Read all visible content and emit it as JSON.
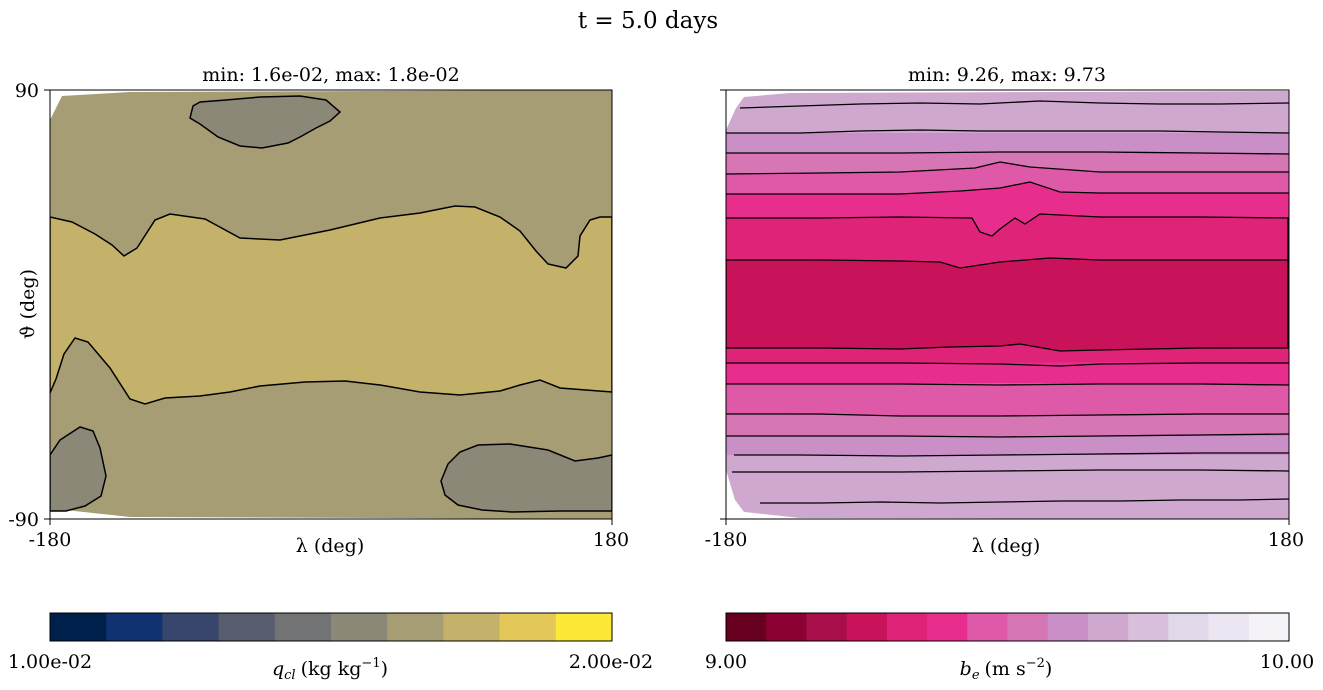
{
  "figure": {
    "suptitle": "t = 5.0 days"
  },
  "panels": [
    {
      "title": "min: 1.6e-02, max: 1.8e-02",
      "xlabel": "λ (deg)",
      "ylabel": "ϑ (deg)",
      "xticks": [
        "-180",
        "180"
      ],
      "yticks": [
        "90",
        "-90"
      ],
      "colorbar": {
        "label_main": "q",
        "label_sub": "cl",
        "label_unit": "(kg kg",
        "label_sup": "−1",
        "label_close": ")",
        "min_label": "1.00e-02",
        "max_label": "2.00e-02",
        "colormap": "cividis",
        "colors": [
          "#00204c",
          "#113270",
          "#38466e",
          "#575d6d",
          "#727374",
          "#8b8878",
          "#a69d75",
          "#c4b26a",
          "#e3c859",
          "#fde838"
        ]
      }
    },
    {
      "title": "min: 9.26, max: 9.73",
      "xlabel": "λ (deg)",
      "xticks": [
        "-180",
        "180"
      ],
      "colorbar": {
        "label_main": "b",
        "label_sub": "e",
        "label_unit": "(m s",
        "label_sup": "−2",
        "label_close": ")",
        "min_label": "9.00",
        "max_label": "10.00",
        "colormap": "PuRd_r",
        "colors": [
          "#67001f",
          "#8b0134",
          "#a80e4a",
          "#c8125a",
          "#df2378",
          "#e72e8d",
          "#de5aa8",
          "#d776b5",
          "#c98fc6",
          "#cfa8d0",
          "#d8bfdb",
          "#e1d9ea",
          "#ece6f2",
          "#f5f3f8"
        ]
      }
    }
  ],
  "chart_data": [
    {
      "type": "contour",
      "variable": "q_cl",
      "title": "min: 1.6e-02, max: 1.8e-02",
      "xlabel": "λ (deg)",
      "ylabel": "ϑ (deg)",
      "xlim": [
        -180,
        180
      ],
      "ylim": [
        -90,
        90
      ],
      "colorbar_range": [
        0.01,
        0.02
      ],
      "n_levels": 10,
      "field_min": 0.016,
      "field_max": 0.018,
      "contour_lines": [
        {
          "name": "northern-boundary",
          "lon": [
            -180,
            -165,
            -150,
            -130,
            -120,
            -112,
            -100,
            -85,
            -60,
            -30,
            0,
            30,
            60,
            90,
            105,
            115,
            122,
            128,
            130,
            135,
            145,
            155,
            165,
            172,
            176,
            180
          ],
          "lat": [
            30,
            27,
            22,
            15,
            11,
            9,
            13,
            23,
            30,
            31,
            28,
            24,
            23,
            24,
            28,
            32,
            36,
            38,
            39,
            36,
            27,
            19,
            15,
            11,
            17,
            17
          ]
        },
        {
          "name": "southern-boundary",
          "lon": [
            -180,
            -175,
            -168,
            -158,
            -145,
            -135,
            -125,
            -115,
            -105,
            -90,
            -70,
            -40,
            -10,
            20,
            50,
            80,
            100,
            115,
            130,
            140,
            150,
            160,
            170,
            180
          ],
          "lat": [
            -43,
            -30,
            -20,
            -21,
            -31,
            -38,
            -44,
            -46,
            -45,
            -42,
            -39,
            -39,
            -41,
            -39,
            -34,
            -33,
            -34,
            -38,
            -38,
            -36,
            -35,
            -35,
            -36,
            -36
          ]
        },
        {
          "name": "north-cell",
          "lon": [
            -98,
            -100,
            -93,
            -80,
            -65,
            -50,
            -33,
            -25,
            -15,
            -10,
            -20,
            -35,
            -55,
            -75,
            -92,
            -98
          ],
          "lat": [
            81,
            78,
            75,
            68,
            63,
            61,
            63,
            67,
            71,
            76,
            81,
            83,
            83,
            82,
            81,
            81
          ]
        },
        {
          "name": "southwest-cell",
          "lon": [
            -180,
            -168,
            -157,
            -150,
            -146,
            -146,
            -149,
            -158,
            -168,
            -180
          ],
          "lat": [
            -60,
            -54,
            -46,
            -48,
            -56,
            -68,
            -74,
            -80,
            -83,
            -84
          ]
        },
        {
          "name": "southeast-cell",
          "lon": [
            180,
            165,
            145,
            120,
            95,
            78,
            72,
            74,
            85,
            105,
            135,
            165,
            180
          ],
          "lat": [
            -61,
            -63,
            -66,
            -65,
            -65,
            -68,
            -75,
            -82,
            -87,
            -88,
            -89,
            -89,
            -89
          ]
        }
      ]
    },
    {
      "type": "contour",
      "variable": "b_e",
      "title": "min: 9.26, max: 9.73",
      "xlabel": "λ (deg)",
      "xlim": [
        -180,
        180
      ],
      "ylim": [
        -90,
        90
      ],
      "colorbar_range": [
        9.0,
        10.0
      ],
      "n_levels": 14,
      "field_min": 9.26,
      "field_max": 9.73,
      "contour_lines": [
        {
          "lon": [
            -180,
            -120,
            -60,
            0,
            60,
            120,
            180
          ],
          "lat": [
            82,
            82,
            80,
            82,
            81,
            81,
            81
          ]
        },
        {
          "lon": [
            -180,
            -120,
            -60,
            0,
            60,
            120,
            180
          ],
          "lat": [
            73,
            73,
            72,
            71,
            72,
            72,
            72
          ]
        },
        {
          "lon": [
            -180,
            -120,
            -60,
            -20,
            0,
            20,
            60,
            120,
            180
          ],
          "lat": [
            64,
            65,
            64,
            63,
            62,
            63,
            64,
            64,
            64
          ]
        },
        {
          "lon": [
            -180,
            -120,
            -60,
            -10,
            15,
            40,
            60,
            120,
            180
          ],
          "lat": [
            59,
            58,
            58,
            58,
            55,
            58,
            58,
            58,
            58
          ]
        },
        {
          "lon": [
            -180,
            -120,
            -60,
            -10,
            0,
            20,
            40,
            60,
            120,
            180
          ],
          "lat": [
            51,
            52,
            52,
            51,
            48,
            46,
            50,
            51,
            51,
            51
          ]
        },
        {
          "lon": [
            -180,
            -120,
            -60,
            -10,
            0,
            20,
            30,
            50,
            80,
            120,
            180
          ],
          "lat": [
            42,
            42,
            42,
            41,
            37,
            36,
            41,
            42,
            42,
            42,
            42
          ]
        },
        {
          "lon": [
            -180,
            -120,
            -60,
            -20,
            20,
            60,
            120,
            180
          ],
          "lat": [
            35,
            35,
            35,
            35,
            36,
            35,
            35,
            35
          ]
        },
        {
          "lon": [
            -180,
            -120,
            -60,
            -20,
            20,
            60,
            120,
            180
          ],
          "lat": [
            -3,
            -3,
            -4,
            -4,
            -3,
            -4,
            -4,
            -4
          ]
        },
        {
          "lon": [
            -180,
            -120,
            -60,
            -20,
            20,
            60,
            120,
            180
          ],
          "lat": [
            -13,
            -13,
            -13,
            -14,
            -14,
            -13,
            -13,
            -13
          ]
        },
        {
          "lon": [
            -180,
            -120,
            -60,
            -20,
            20,
            60,
            120,
            180
          ],
          "lat": [
            -22,
            -22,
            -22,
            -23,
            -23,
            -22,
            -22,
            -22
          ]
        },
        {
          "lon": [
            -180,
            -120,
            -60,
            -20,
            20,
            60,
            120,
            180
          ],
          "lat": [
            -34,
            -34,
            -34,
            -34,
            -34,
            -33,
            -33,
            -33
          ]
        },
        {
          "lon": [
            -180,
            -120,
            -60,
            -20,
            20,
            60,
            120,
            180
          ],
          "lat": [
            -44,
            -44,
            -45,
            -45,
            -44,
            -44,
            -44,
            -44
          ]
        },
        {
          "lon": [
            -180,
            -120,
            -60,
            -20,
            20,
            60,
            120,
            180
          ],
          "lat": [
            -54,
            -54,
            -55,
            -54,
            -54,
            -53,
            -53,
            -53
          ]
        },
        {
          "lon": [
            -180,
            -120,
            -60,
            -20,
            20,
            60,
            120,
            180
          ],
          "lat": [
            -62,
            -63,
            -63,
            -62,
            -62,
            -62,
            -62,
            -62
          ]
        },
        {
          "lon": [
            -180,
            -120,
            -60,
            -20,
            20,
            60,
            120,
            180
          ],
          "lat": [
            -72,
            -72,
            -72,
            -71,
            -71,
            -71,
            -71,
            -71
          ]
        },
        {
          "lon": [
            -180,
            -120,
            -60,
            -20,
            20,
            60,
            120,
            180
          ],
          "lat": [
            -86,
            -86,
            -86,
            -86,
            -86,
            -85,
            -85,
            -85
          ]
        }
      ]
    }
  ]
}
